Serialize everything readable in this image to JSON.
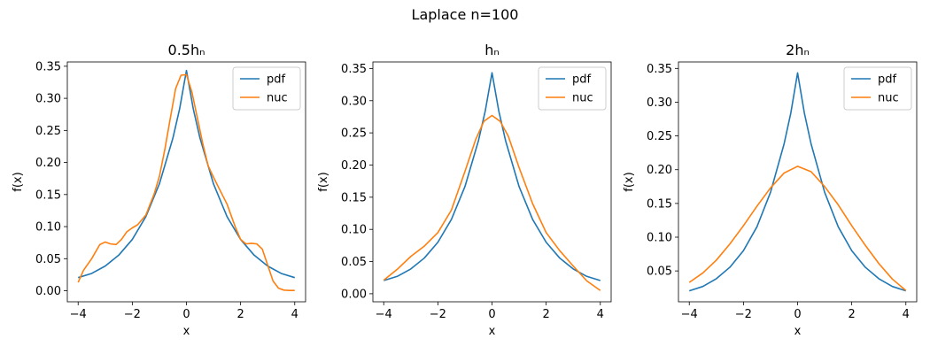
{
  "figure": {
    "suptitle": "Laplace n=100"
  },
  "colors": {
    "pdf": "#1f77b4",
    "nuc": "#ff7f0e"
  },
  "chart_data": [
    {
      "type": "line",
      "title": "0.5hₙ",
      "xlabel": "x",
      "ylabel": "f(x)",
      "xlim": [
        -4.4,
        4.4
      ],
      "ylim": [
        -0.0172,
        0.3567
      ],
      "xticks": [
        -4,
        -2,
        0,
        2,
        4
      ],
      "yticks": [
        0.0,
        0.05,
        0.1,
        0.15,
        0.2,
        0.25,
        0.3,
        0.35
      ],
      "ytick_labels": [
        "0.00",
        "0.05",
        "0.10",
        "0.15",
        "0.20",
        "0.25",
        "0.30",
        "0.35"
      ],
      "grid": false,
      "legend": "upper right",
      "series": [
        {
          "name": "pdf",
          "x": [
            -4,
            -3.5,
            -3,
            -2.5,
            -2,
            -1.5,
            -1,
            -0.5,
            -0.25,
            0,
            0.25,
            0.5,
            1,
            1.5,
            2,
            2.5,
            3,
            3.5,
            4
          ],
          "y": [
            0.0205,
            0.027,
            0.0385,
            0.0555,
            0.08,
            0.1155,
            0.1665,
            0.238,
            0.284,
            0.3434,
            0.284,
            0.238,
            0.1665,
            0.1155,
            0.08,
            0.0555,
            0.0385,
            0.027,
            0.0205
          ]
        },
        {
          "name": "nuc",
          "x": [
            -4,
            -3.8,
            -3.5,
            -3.2,
            -3.0,
            -2.8,
            -2.6,
            -2.4,
            -2.2,
            -2.0,
            -1.8,
            -1.5,
            -1.2,
            -1.0,
            -0.8,
            -0.6,
            -0.4,
            -0.2,
            0,
            0.2,
            0.4,
            0.6,
            0.8,
            1.0,
            1.2,
            1.5,
            1.8,
            2.0,
            2.2,
            2.4,
            2.6,
            2.8,
            3.0,
            3.2,
            3.4,
            3.6,
            3.8,
            4.0
          ],
          "y": [
            0.013,
            0.032,
            0.05,
            0.072,
            0.076,
            0.073,
            0.072,
            0.08,
            0.092,
            0.098,
            0.103,
            0.118,
            0.15,
            0.178,
            0.22,
            0.268,
            0.315,
            0.336,
            0.337,
            0.31,
            0.27,
            0.23,
            0.195,
            0.177,
            0.16,
            0.135,
            0.1,
            0.08,
            0.073,
            0.074,
            0.073,
            0.065,
            0.04,
            0.015,
            0.004,
            0.001,
            0.0005,
            0.0005
          ]
        }
      ]
    },
    {
      "type": "line",
      "title": "hₙ",
      "xlabel": "x",
      "ylabel": "f(x)",
      "xlim": [
        -4.4,
        4.4
      ],
      "ylim": [
        -0.0125,
        0.3602
      ],
      "xticks": [
        -4,
        -2,
        0,
        2,
        4
      ],
      "yticks": [
        0.0,
        0.05,
        0.1,
        0.15,
        0.2,
        0.25,
        0.3,
        0.35
      ],
      "ytick_labels": [
        "0.00",
        "0.05",
        "0.10",
        "0.15",
        "0.20",
        "0.25",
        "0.30",
        "0.35"
      ],
      "grid": false,
      "legend": "upper right",
      "series": [
        {
          "name": "pdf",
          "x": [
            -4,
            -3.5,
            -3,
            -2.5,
            -2,
            -1.5,
            -1,
            -0.5,
            -0.25,
            0,
            0.25,
            0.5,
            1,
            1.5,
            2,
            2.5,
            3,
            3.5,
            4
          ],
          "y": [
            0.0205,
            0.027,
            0.0385,
            0.0555,
            0.08,
            0.1155,
            0.1665,
            0.238,
            0.284,
            0.3434,
            0.284,
            0.238,
            0.1665,
            0.1155,
            0.08,
            0.0555,
            0.0385,
            0.027,
            0.0205
          ]
        },
        {
          "name": "nuc",
          "x": [
            -4,
            -3.5,
            -3.0,
            -2.5,
            -2.0,
            -1.5,
            -1.0,
            -0.6,
            -0.3,
            0,
            0.3,
            0.6,
            1.0,
            1.5,
            2.0,
            2.5,
            3.0,
            3.5,
            4.0
          ],
          "y": [
            0.021,
            0.038,
            0.058,
            0.074,
            0.095,
            0.13,
            0.19,
            0.24,
            0.268,
            0.277,
            0.268,
            0.245,
            0.196,
            0.14,
            0.095,
            0.067,
            0.043,
            0.02,
            0.005
          ]
        }
      ]
    },
    {
      "type": "line",
      "title": "2hₙ",
      "xlabel": "x",
      "ylabel": "f(x)",
      "xlim": [
        -4.4,
        4.4
      ],
      "ylim": [
        0.0043,
        0.3596
      ],
      "xticks": [
        -4,
        -2,
        0,
        2,
        4
      ],
      "yticks": [
        0.05,
        0.1,
        0.15,
        0.2,
        0.25,
        0.3,
        0.35
      ],
      "ytick_labels": [
        "0.05",
        "0.10",
        "0.15",
        "0.20",
        "0.25",
        "0.30",
        "0.35"
      ],
      "grid": false,
      "legend": "upper right",
      "series": [
        {
          "name": "pdf",
          "x": [
            -4,
            -3.5,
            -3,
            -2.5,
            -2,
            -1.5,
            -1,
            -0.5,
            -0.25,
            0,
            0.25,
            0.5,
            1,
            1.5,
            2,
            2.5,
            3,
            3.5,
            4
          ],
          "y": [
            0.0205,
            0.027,
            0.0385,
            0.0555,
            0.08,
            0.1155,
            0.1665,
            0.238,
            0.284,
            0.3434,
            0.284,
            0.238,
            0.1665,
            0.1155,
            0.08,
            0.0555,
            0.0385,
            0.027,
            0.0205
          ]
        },
        {
          "name": "nuc",
          "x": [
            -4,
            -3.5,
            -3.0,
            -2.5,
            -2.0,
            -1.5,
            -1.0,
            -0.5,
            0,
            0.5,
            1.0,
            1.5,
            2.0,
            2.5,
            3.0,
            3.5,
            4.0
          ],
          "y": [
            0.033,
            0.047,
            0.066,
            0.09,
            0.117,
            0.146,
            0.173,
            0.195,
            0.205,
            0.197,
            0.175,
            0.148,
            0.117,
            0.088,
            0.061,
            0.038,
            0.021
          ]
        }
      ]
    }
  ]
}
